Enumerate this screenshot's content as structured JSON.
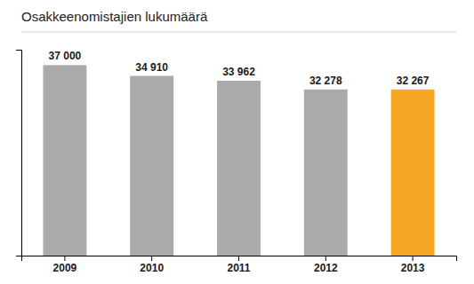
{
  "chart_data": {
    "type": "bar",
    "title": "Osakkeenomistajien lukumäärä",
    "categories": [
      "2009",
      "2010",
      "2011",
      "2012",
      "2013"
    ],
    "values": [
      37000,
      34910,
      33962,
      32278,
      32267
    ],
    "value_labels": [
      "37 000",
      "34 910",
      "33 962",
      "32 278",
      "32 267"
    ],
    "colors": [
      "#aaaaaa",
      "#aaaaaa",
      "#aaaaaa",
      "#aaaaaa",
      "#f5a623"
    ],
    "ylim": [
      0,
      40000
    ],
    "data_labels": true,
    "tick_labels": "x",
    "grid": false
  }
}
